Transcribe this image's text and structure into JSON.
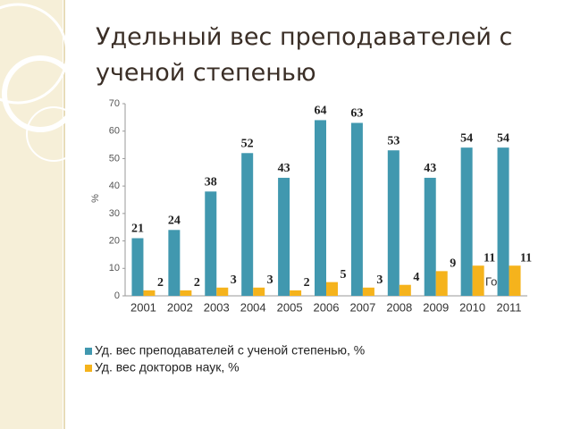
{
  "chart_data": {
    "type": "bar",
    "title": "Удельный вес преподавателей с ученой степенью",
    "y_label": "%",
    "annotation": "Го",
    "categories": [
      "2001",
      "2002",
      "2003",
      "2004",
      "2005",
      "2006",
      "2007",
      "2008",
      "2009",
      "2010",
      "2011"
    ],
    "series": [
      {
        "name": "Уд. вес преподавателей с ученой степенью, %",
        "color": "#4198af",
        "values": [
          21,
          24,
          38,
          52,
          43,
          64,
          63,
          53,
          43,
          54,
          54
        ]
      },
      {
        "name": "Уд. вес докторов наук, %",
        "color": "#f5b31c",
        "values": [
          2,
          2,
          3,
          3,
          2,
          5,
          3,
          4,
          9,
          11,
          11
        ]
      }
    ],
    "ylim": [
      0,
      70
    ],
    "yticks": [
      0,
      10,
      20,
      30,
      40,
      50,
      60,
      70
    ],
    "grid": false,
    "legend": "bottom"
  }
}
